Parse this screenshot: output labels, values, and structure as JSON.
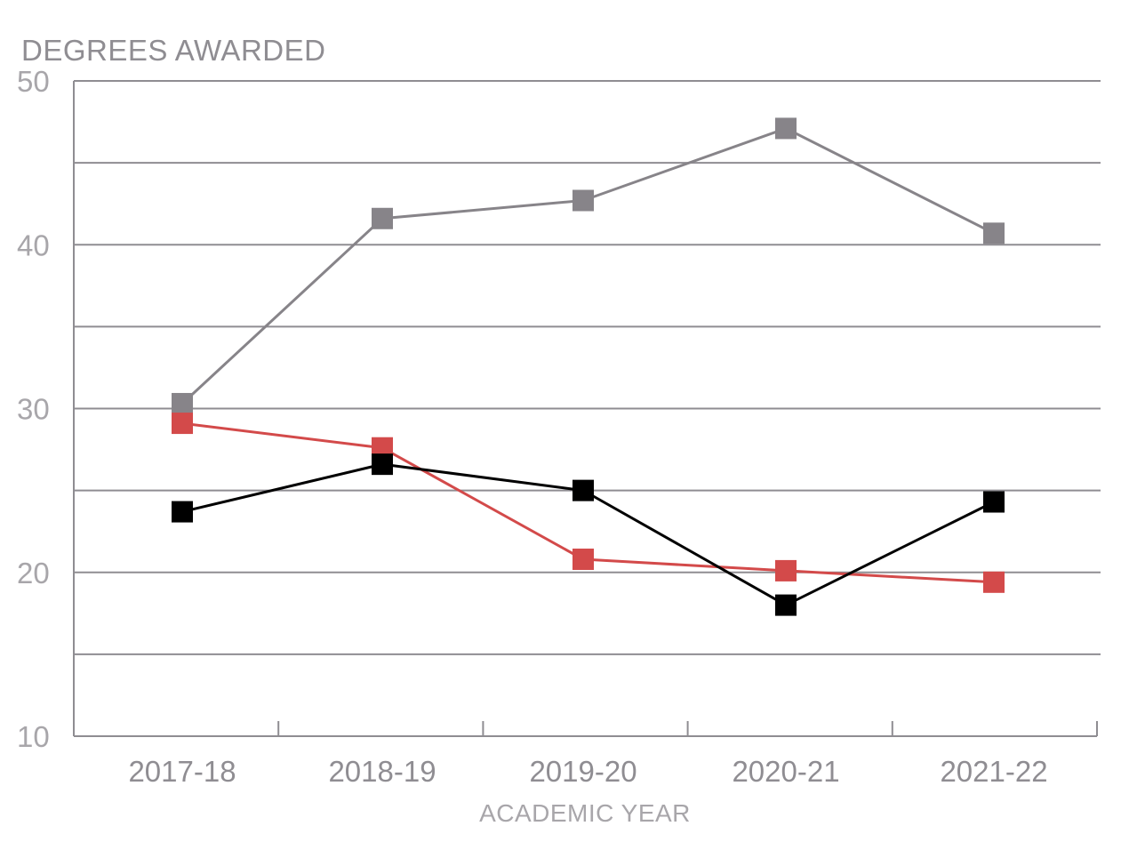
{
  "chart_data": {
    "type": "line",
    "title": "",
    "ylabel": "DEGREES AWARDED",
    "xlabel": "ACADEMIC YEAR",
    "categories": [
      "2017-18",
      "2018-19",
      "2019-20",
      "2020-21",
      "2021-22"
    ],
    "ylim": [
      10,
      50
    ],
    "yticks": [
      10,
      20,
      30,
      40,
      50
    ],
    "gridlines": [
      15,
      20,
      25,
      30,
      35,
      40,
      45,
      50
    ],
    "grid": true,
    "series": [
      {
        "name": "gray series",
        "color": "#878489",
        "values": [
          30.3,
          41.6,
          42.7,
          47.1,
          40.7
        ]
      },
      {
        "name": "red series",
        "color": "#d34a4a",
        "values": [
          29.1,
          27.6,
          20.8,
          20.1,
          19.4
        ]
      },
      {
        "name": "black series",
        "color": "#000000",
        "values": [
          23.7,
          26.6,
          25.0,
          18.0,
          24.3
        ]
      }
    ]
  }
}
